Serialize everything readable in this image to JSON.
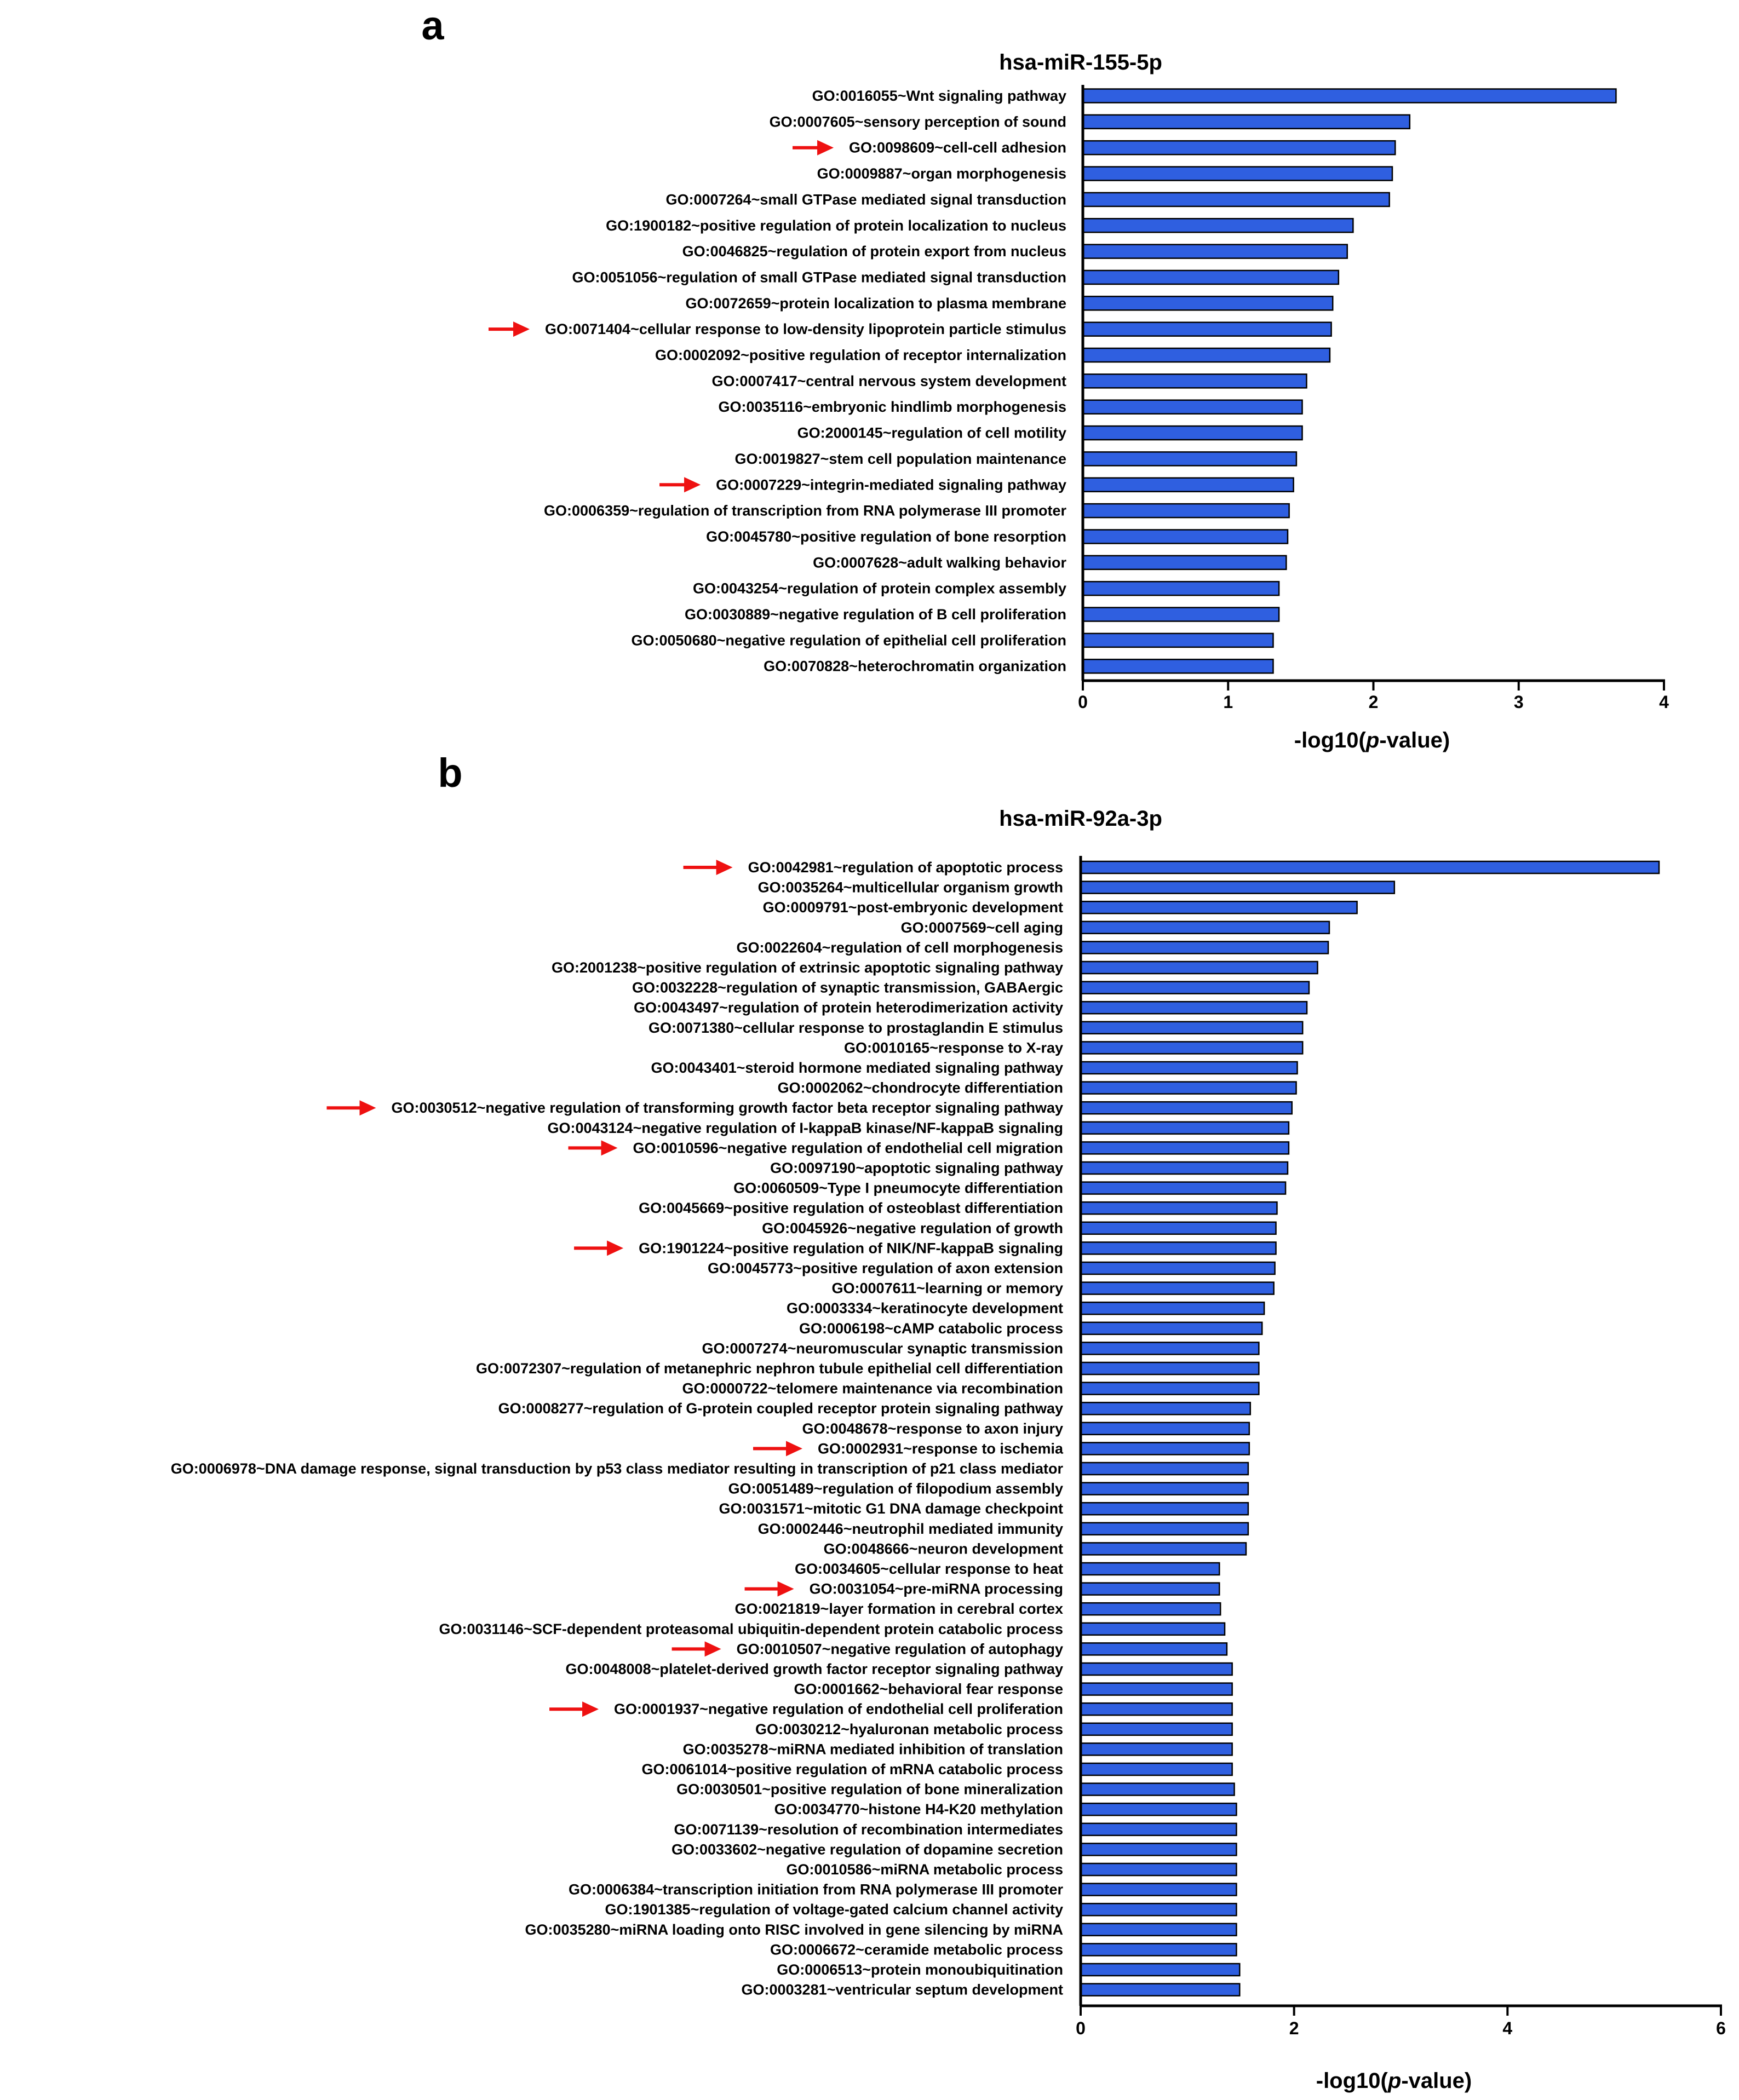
{
  "colors": {
    "bar": "#2f5fe0",
    "arrow": "#ee1111"
  },
  "chart_data": [
    {
      "type": "bar",
      "orientation": "horizontal",
      "panel_label": "a",
      "title": "hsa-miR-155-5p",
      "xlabel_prefix": "-log10(",
      "xlabel_italic": "p",
      "xlabel_suffix": "-value)",
      "xlim": [
        0,
        4
      ],
      "xticks": [
        0,
        1,
        2,
        3,
        4
      ],
      "categories": [
        "GO:0016055~Wnt signaling pathway",
        "GO:0007605~sensory perception of sound",
        "GO:0098609~cell-cell adhesion",
        "GO:0009887~organ morphogenesis",
        "GO:0007264~small GTPase mediated signal transduction",
        "GO:1900182~positive regulation of protein localization to nucleus",
        "GO:0046825~regulation of protein export from nucleus",
        "GO:0051056~regulation of small GTPase mediated signal transduction",
        "GO:0072659~protein localization to plasma membrane",
        "GO:0071404~cellular response to low-density lipoprotein particle stimulus",
        "GO:0002092~positive regulation of receptor internalization",
        "GO:0007417~central nervous system development",
        "GO:0035116~embryonic hindlimb morphogenesis",
        "GO:2000145~regulation of cell motility",
        "GO:0019827~stem cell population maintenance",
        "GO:0007229~integrin-mediated signaling pathway",
        "GO:0006359~regulation of transcription from RNA polymerase III promoter",
        "GO:0045780~positive regulation of bone resorption",
        "GO:0007628~adult walking behavior",
        "GO:0043254~regulation of protein complex assembly",
        "GO:0030889~negative regulation of B cell proliferation",
        "GO:0050680~negative regulation of epithelial cell proliferation",
        "GO:0070828~heterochromatin organization"
      ],
      "values": [
        3.67,
        2.25,
        2.15,
        2.13,
        2.11,
        1.86,
        1.82,
        1.76,
        1.72,
        1.71,
        1.7,
        1.54,
        1.51,
        1.51,
        1.47,
        1.45,
        1.42,
        1.41,
        1.4,
        1.35,
        1.35,
        1.31,
        1.31
      ],
      "highlighted": [
        2,
        9,
        15
      ]
    },
    {
      "type": "bar",
      "orientation": "horizontal",
      "panel_label": "b",
      "title": "hsa-miR-92a-3p",
      "xlabel_prefix": "-log10(",
      "xlabel_italic": "p",
      "xlabel_suffix": "-value)",
      "xlim": [
        0,
        6
      ],
      "xticks": [
        0,
        2,
        4,
        6
      ],
      "categories": [
        "GO:0042981~regulation of apoptotic process",
        "GO:0035264~multicellular organism growth",
        "GO:0009791~post-embryonic development",
        "GO:0007569~cell aging",
        "GO:0022604~regulation of cell morphogenesis",
        "GO:2001238~positive regulation of extrinsic apoptotic signaling pathway",
        "GO:0032228~regulation of synaptic transmission, GABAergic",
        "GO:0043497~regulation of protein heterodimerization activity",
        "GO:0071380~cellular response to prostaglandin E stimulus",
        "GO:0010165~response to X-ray",
        "GO:0043401~steroid hormone mediated signaling pathway",
        "GO:0002062~chondrocyte differentiation",
        "GO:0030512~negative regulation of transforming growth factor beta receptor signaling pathway",
        "GO:0043124~negative regulation of I-kappaB kinase/NF-kappaB signaling",
        "GO:0010596~negative regulation of endothelial cell migration",
        "GO:0097190~apoptotic signaling pathway",
        "GO:0060509~Type I pneumocyte differentiation",
        "GO:0045669~positive regulation of osteoblast differentiation",
        "GO:0045926~negative regulation of growth",
        "GO:1901224~positive regulation of NIK/NF-kappaB signaling",
        "GO:0045773~positive regulation of axon extension",
        "GO:0007611~learning or memory",
        "GO:0003334~keratinocyte development",
        "GO:0006198~cAMP catabolic process",
        "GO:0007274~neuromuscular synaptic transmission",
        "GO:0072307~regulation of metanephric nephron tubule epithelial cell differentiation",
        "GO:0000722~telomere maintenance via recombination",
        "GO:0008277~regulation of G-protein coupled receptor protein signaling pathway",
        "GO:0048678~response to axon injury",
        "GO:0002931~response to ischemia",
        "GO:0006978~DNA damage response, signal transduction by p53 class mediator resulting in transcription of p21 class mediator",
        "GO:0051489~regulation of filopodium assembly",
        "GO:0031571~mitotic G1 DNA damage checkpoint",
        "GO:0002446~neutrophil mediated immunity",
        "GO:0048666~neuron development",
        "GO:0034605~cellular response to heat",
        "GO:0031054~pre-miRNA processing",
        "GO:0021819~layer formation in cerebral cortex",
        "GO:0031146~SCF-dependent proteasomal ubiquitin-dependent protein catabolic process",
        "GO:0010507~negative regulation of autophagy",
        "GO:0048008~platelet-derived growth factor receptor signaling pathway",
        "GO:0001662~behavioral fear response",
        "GO:0001937~negative regulation of endothelial cell proliferation",
        "GO:0030212~hyaluronan metabolic process",
        "GO:0035278~miRNA mediated inhibition of translation",
        "GO:0061014~positive regulation of mRNA catabolic process",
        "GO:0030501~positive regulation of bone mineralization",
        "GO:0034770~histone H4-K20 methylation",
        "GO:0071139~resolution of recombination intermediates",
        "GO:0033602~negative regulation of dopamine secretion",
        "GO:0010586~miRNA metabolic process",
        "GO:0006384~transcription initiation from RNA polymerase III promoter",
        "GO:1901385~regulation of voltage-gated calcium channel activity",
        "GO:0035280~miRNA loading onto RISC involved in gene silencing by miRNA",
        "GO:0006672~ceramide metabolic process",
        "GO:0006513~protein monoubiquitination",
        "GO:0003281~ventricular septum development"
      ],
      "values": [
        5.42,
        2.94,
        2.59,
        2.33,
        2.32,
        2.22,
        2.14,
        2.12,
        2.08,
        2.08,
        2.03,
        2.02,
        1.98,
        1.95,
        1.95,
        1.94,
        1.92,
        1.84,
        1.83,
        1.83,
        1.82,
        1.81,
        1.72,
        1.7,
        1.67,
        1.67,
        1.67,
        1.59,
        1.58,
        1.58,
        1.57,
        1.57,
        1.57,
        1.57,
        1.55,
        1.3,
        1.3,
        1.31,
        1.35,
        1.37,
        1.42,
        1.42,
        1.42,
        1.42,
        1.42,
        1.42,
        1.44,
        1.46,
        1.46,
        1.46,
        1.46,
        1.46,
        1.46,
        1.46,
        1.46,
        1.49,
        1.49
      ],
      "highlighted": [
        0,
        12,
        14,
        19,
        29,
        36,
        39,
        42
      ]
    }
  ]
}
